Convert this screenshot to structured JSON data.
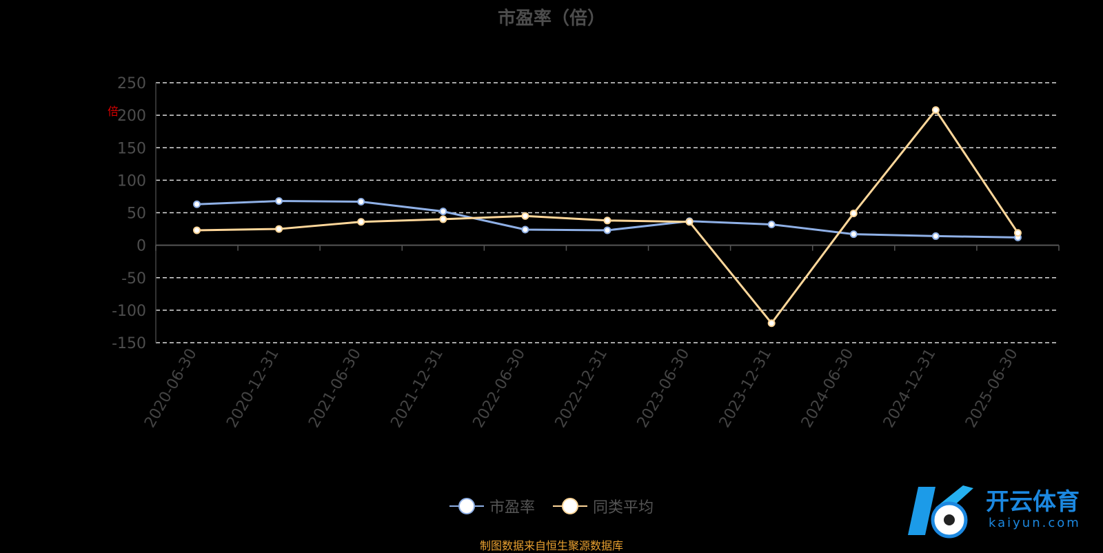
{
  "chart_data": {
    "type": "line",
    "title": "市盈率（倍）",
    "categories": [
      "2020-06-30",
      "2020-12-31",
      "2021-06-30",
      "2021-12-31",
      "2022-06-30",
      "2022-12-31",
      "2023-06-30",
      "2023-12-31",
      "2024-06-30",
      "2024-12-31",
      "2025-06-30"
    ],
    "series": [
      {
        "name": "市盈率",
        "color": "#8fb0e6",
        "values": [
          63,
          68,
          67,
          52,
          24,
          23,
          37,
          32,
          17,
          14,
          12
        ]
      },
      {
        "name": "同类平均",
        "color": "#ffd79a",
        "values": [
          23,
          25,
          36,
          40,
          45,
          38,
          36,
          -120,
          49,
          208,
          19
        ]
      }
    ],
    "yticks": [
      250,
      200,
      150,
      100,
      50,
      0,
      -50,
      -100,
      -150
    ],
    "ylim": [
      -150,
      250
    ],
    "grid": true,
    "legend": "bottom-center"
  },
  "footer": {
    "source": "制图数据来自恒生聚源数据库"
  },
  "unit_mark": "倍",
  "watermark": {
    "brand": "开云体育",
    "domain": "kaiyun.com"
  }
}
